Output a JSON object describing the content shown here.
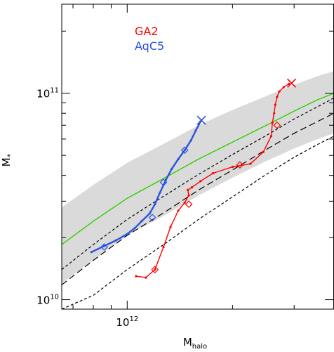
{
  "chart_data": {
    "type": "line",
    "xlabel": "M",
    "xlabel_sub": "halo",
    "ylabel": "M",
    "ylabel_sub": "*",
    "x_scale": "log",
    "y_scale": "log",
    "xlim": [
      650000000000.0,
      3900000000000.0
    ],
    "ylim": [
      9000000000.0,
      270000000000.0
    ],
    "x_ticks": [
      {
        "value": 1000000000000.0,
        "base": "10",
        "exp": "12"
      }
    ],
    "y_ticks": [
      {
        "value": 10000000000.0,
        "base": "10",
        "exp": "10"
      },
      {
        "value": 100000000000.0,
        "base": "10",
        "exp": "11"
      }
    ],
    "legend_position": "top-left",
    "colors": {
      "GA2": "#ff0000",
      "AqC5": "#2a52e0",
      "band": "#d4d4d4",
      "relation": "#33cc00",
      "bounds": "#000000"
    },
    "band": {
      "x": [
        650000000000.0,
        800000000000.0,
        1000000000000.0,
        1300000000000.0,
        1600000000000.0,
        2000000000000.0,
        2500000000000.0,
        3000000000000.0,
        3500000000000.0,
        3900000000000.0
      ],
      "upper": [
        28000000000.0,
        36000000000.0,
        46000000000.0,
        58000000000.0,
        70000000000.0,
        83000000000.0,
        97000000000.0,
        110000000000.0,
        121000000000.0,
        128000000000.0
      ],
      "lower": [
        12000000000.0,
        15500000000.0,
        20500000000.0,
        26000000000.0,
        32000000000.0,
        39000000000.0,
        47000000000.0,
        54000000000.0,
        60000000000.0,
        64000000000.0
      ]
    },
    "series": [
      {
        "name": "GA2",
        "x": [
          1060000000000.0,
          1130000000000.0,
          1200000000000.0,
          1270000000000.0,
          1330000000000.0,
          1400000000000.0,
          1460000000000.0,
          1500000000000.0,
          1490000000000.0,
          1530000000000.0,
          1620000000000.0,
          1760000000000.0,
          2000000000000.0,
          2250000000000.0,
          2450000000000.0,
          2580000000000.0,
          2600000000000.0,
          2630000000000.0,
          2650000000000.0,
          2680000000000.0,
          2720000000000.0,
          2800000000000.0,
          2900000000000.0
        ],
        "y": [
          13000000000.0,
          12800000000.0,
          14000000000.0,
          18000000000.0,
          22500000000.0,
          27000000000.0,
          29500000000.0,
          32000000000.0,
          34000000000.0,
          35000000000.0,
          37500000000.0,
          41000000000.0,
          44000000000.0,
          45500000000.0,
          52000000000.0,
          62000000000.0,
          72000000000.0,
          80000000000.0,
          88000000000.0,
          96000000000.0,
          102000000000.0,
          107000000000.0,
          111000000000.0
        ],
        "diamonds": [
          [
            1200000000000.0,
            14000000000.0
          ],
          [
            1500000000000.0,
            29000000000.0
          ],
          [
            2100000000000.0,
            45000000000.0
          ],
          [
            2680000000000.0,
            70000000000.0
          ]
        ],
        "final": [
          2950000000000.0,
          112000000000.0
        ]
      },
      {
        "name": "AqC5",
        "x": [
          790000000000.0,
          860000000000.0,
          930000000000.0,
          1000000000000.0,
          1050000000000.0,
          1100000000000.0,
          1160000000000.0,
          1200000000000.0,
          1240000000000.0,
          1290000000000.0,
          1340000000000.0,
          1400000000000.0,
          1460000000000.0,
          1520000000000.0,
          1570000000000.0,
          1620000000000.0
        ],
        "y": [
          17000000000.0,
          18200000000.0,
          19400000000.0,
          20800000000.0,
          22200000000.0,
          24000000000.0,
          26200000000.0,
          29000000000.0,
          33000000000.0,
          38000000000.0,
          43000000000.0,
          48000000000.0,
          53000000000.0,
          59000000000.0,
          66000000000.0,
          73000000000.0
        ],
        "diamonds": [
          [
            860000000000.0,
            18000000000.0
          ],
          [
            1180000000000.0,
            25000000000.0
          ],
          [
            1270000000000.0,
            37000000000.0
          ],
          [
            1460000000000.0,
            53000000000.0
          ]
        ],
        "final": [
          1630000000000.0,
          74000000000.0
        ]
      }
    ],
    "relation_line": {
      "x": [
        650000000000.0,
        800000000000.0,
        1000000000000.0,
        1300000000000.0,
        1600000000000.0,
        2000000000000.0,
        2500000000000.0,
        3000000000000.0,
        3500000000000.0,
        3900000000000.0
      ],
      "y": [
        18500000000.0,
        24000000000.0,
        31000000000.0,
        39500000000.0,
        48000000000.0,
        58000000000.0,
        70000000000.0,
        82000000000.0,
        93000000000.0,
        100000000000.0
      ]
    },
    "dashed_lines": [
      {
        "style": "short-dash",
        "x": [
          650000000000.0,
          800000000000.0,
          1000000000000.0,
          1300000000000.0,
          1600000000000.0,
          2000000000000.0,
          2500000000000.0,
          3000000000000.0,
          3500000000000.0,
          3900000000000.0
        ],
        "y": [
          14000000000.0,
          18500000000.0,
          24500000000.0,
          32500000000.0,
          40500000000.0,
          50500000000.0,
          62500000000.0,
          75000000000.0,
          86000000000.0,
          95000000000.0
        ]
      },
      {
        "style": "long-dash",
        "x": [
          650000000000.0,
          800000000000.0,
          1000000000000.0,
          1300000000000.0,
          1600000000000.0,
          2000000000000.0,
          2500000000000.0,
          3000000000000.0,
          3500000000000.0,
          3900000000000.0
        ],
        "y": [
          11800000000.0,
          15500000000.0,
          20500000000.0,
          27000000000.0,
          34000000000.0,
          42500000000.0,
          53500000000.0,
          64000000000.0,
          73000000000.0,
          80000000000.0
        ]
      },
      {
        "style": "short-dash",
        "x": [
          650000000000.0,
          800000000000.0,
          1000000000000.0,
          1300000000000.0,
          1600000000000.0,
          2000000000000.0,
          2500000000000.0,
          3000000000000.0,
          3500000000000.0,
          3900000000000.0
        ],
        "y": [
          9000000000.0,
          10500000000.0,
          14000000000.0,
          19000000000.0,
          24500000000.0,
          31500000000.0,
          40500000000.0,
          49000000000.0,
          56500000000.0,
          62000000000.0
        ]
      }
    ]
  }
}
